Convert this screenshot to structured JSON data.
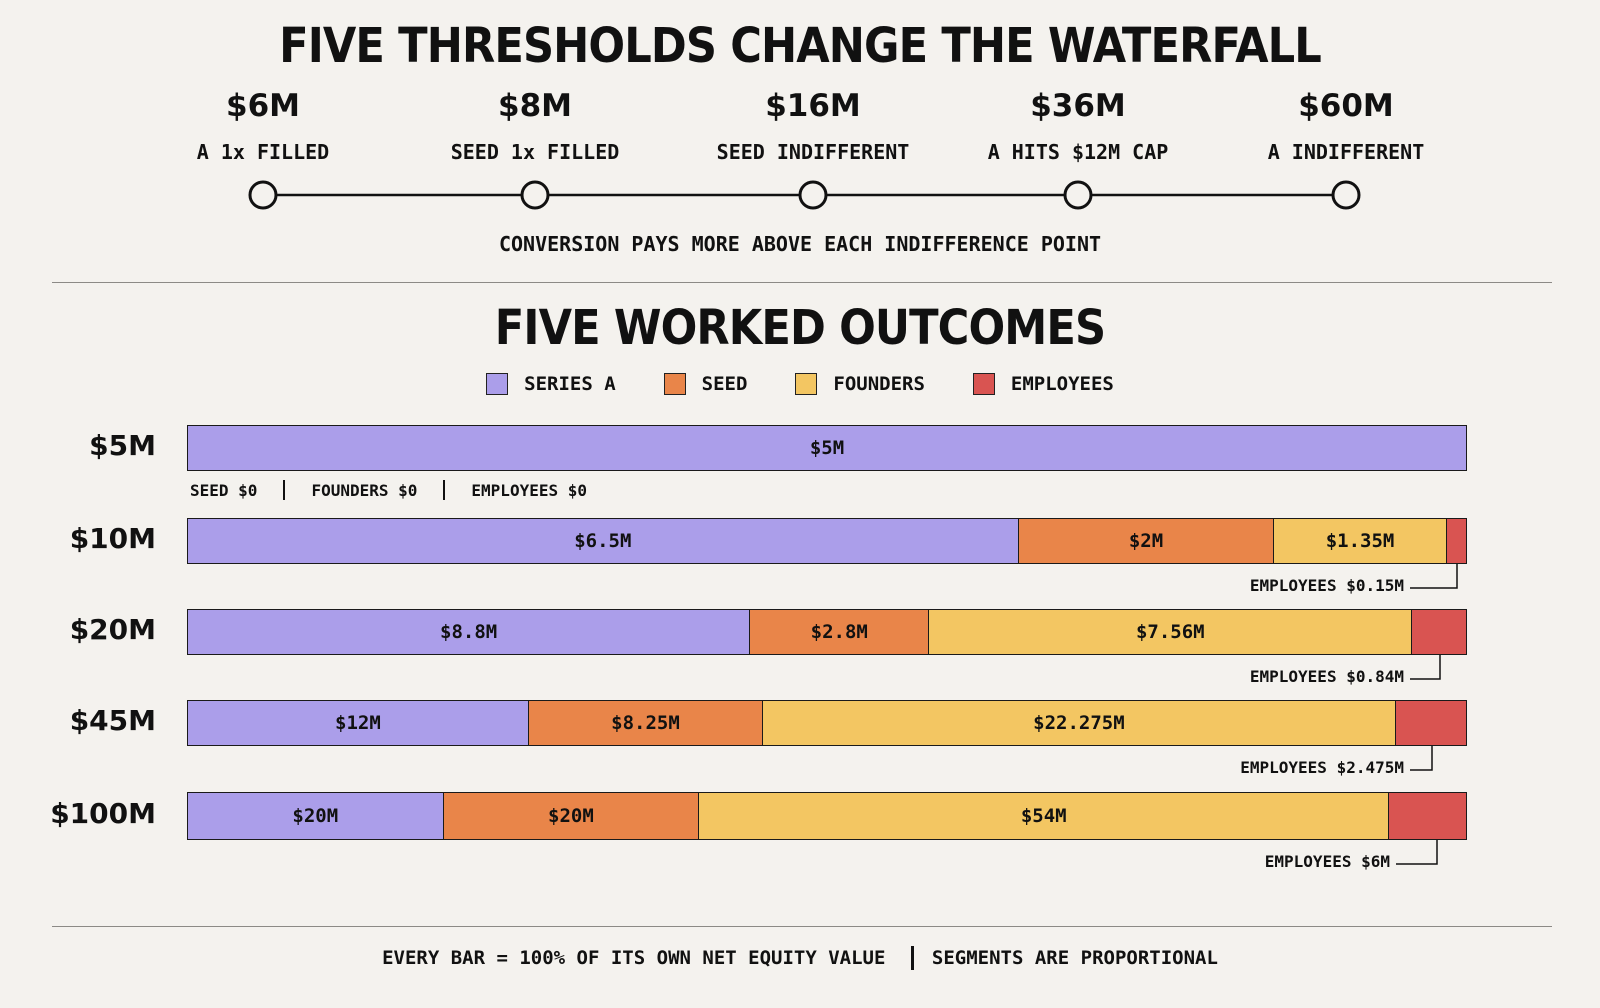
{
  "top": {
    "title": "FIVE THRESHOLDS CHANGE THE WATERFALL",
    "milestones": [
      {
        "value": "$6M",
        "label": "A 1x FILLED"
      },
      {
        "value": "$8M",
        "label": "SEED 1x FILLED"
      },
      {
        "value": "$16M",
        "label": "SEED INDIFFERENT"
      },
      {
        "value": "$36M",
        "label": "A HITS $12M CAP"
      },
      {
        "value": "$60M",
        "label": "A INDIFFERENT"
      }
    ],
    "note": "CONVERSION PAYS MORE ABOVE EACH INDIFFERENCE POINT"
  },
  "outcomes": {
    "title": "FIVE WORKED OUTCOMES"
  },
  "legend": [
    {
      "label": "SERIES A",
      "color": "#ab9eea"
    },
    {
      "label": "SEED",
      "color": "#e98549"
    },
    {
      "label": "FOUNDERS",
      "color": "#f3c662"
    },
    {
      "label": "EMPLOYEES",
      "color": "#d95451"
    }
  ],
  "chart_data": {
    "type": "bar",
    "orientation": "horizontal",
    "stacked": "100%",
    "categories": [
      "$5M",
      "$10M",
      "$20M",
      "$45M",
      "$100M"
    ],
    "series": [
      {
        "name": "SERIES A",
        "values": [
          5,
          6.5,
          8.8,
          12,
          20
        ],
        "labels": [
          "$5M",
          "$6.5M",
          "$8.8M",
          "$12M",
          "$20M"
        ]
      },
      {
        "name": "SEED",
        "values": [
          0,
          2,
          2.8,
          8.25,
          20
        ],
        "labels": [
          "",
          "$2M",
          "$2.8M",
          "$8.25M",
          "$20M"
        ]
      },
      {
        "name": "FOUNDERS",
        "values": [
          0,
          1.35,
          7.56,
          22.275,
          54
        ],
        "labels": [
          "",
          "$1.35M",
          "$7.56M",
          "$22.275M",
          "$54M"
        ]
      },
      {
        "name": "EMPLOYEES",
        "values": [
          0,
          0.15,
          0.84,
          2.475,
          6
        ],
        "labels": [
          "",
          "",
          "",
          "",
          ""
        ]
      }
    ],
    "zero_note": [
      "SEED $0",
      "FOUNDERS $0",
      "EMPLOYEES $0"
    ],
    "callouts": [
      "",
      "EMPLOYEES $0.15M",
      "EMPLOYEES $0.84M",
      "EMPLOYEES $2.475M",
      "EMPLOYEES $6M"
    ]
  },
  "footer": {
    "left": "EVERY BAR = 100% OF ITS OWN NET EQUITY VALUE",
    "right": "SEGMENTS ARE PROPORTIONAL"
  }
}
